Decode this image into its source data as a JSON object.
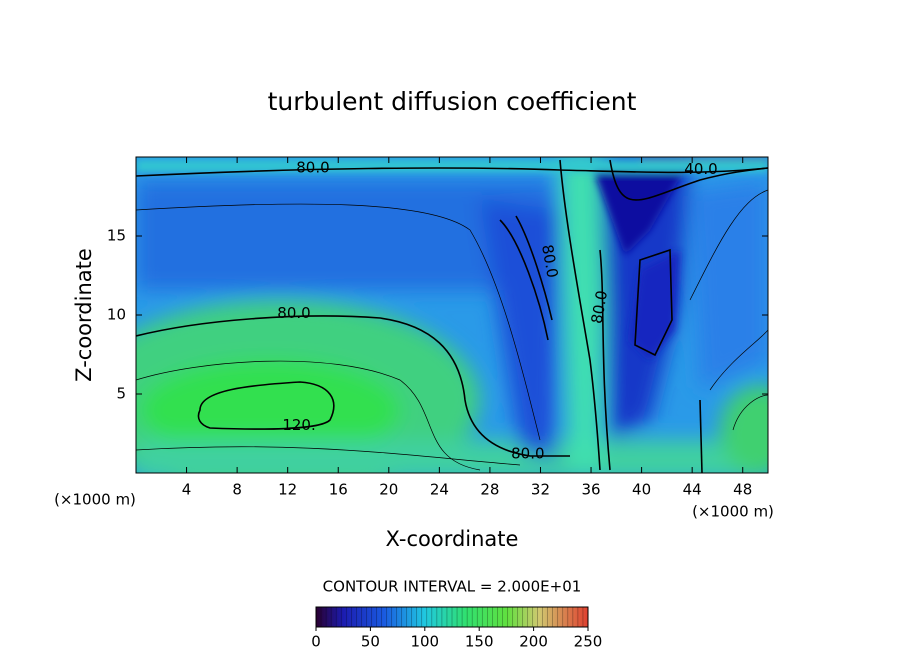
{
  "chart_data": {
    "type": "contour",
    "title": "turbulent diffusion coefficient",
    "xlabel": "X-coordinate",
    "ylabel": "Z-coordinate",
    "x_unit_label": "(×1000 m)",
    "y_unit_label": "(×1000 m)",
    "xlim": [
      0,
      50
    ],
    "xticks": [
      4,
      8,
      12,
      16,
      20,
      24,
      28,
      32,
      36,
      40,
      44,
      48
    ],
    "ylim": [
      0,
      20
    ],
    "yticks": [
      5,
      10,
      15
    ],
    "contour_labels": [
      {
        "value": 80,
        "label": "80.0",
        "x": 14.0,
        "z": 19.3
      },
      {
        "value": 80,
        "label": "80.0",
        "x": 12.5,
        "z": 10.1
      },
      {
        "value": 120,
        "label": "120.",
        "x": 12.9,
        "z": 3.0
      },
      {
        "value": 80,
        "label": "80.0",
        "x": 31.0,
        "z": 1.2
      },
      {
        "value": 80,
        "label": "80.0",
        "x": 32.7,
        "z": 13.4
      },
      {
        "value": 80,
        "label": "80.0",
        "x": 36.7,
        "z": 10.5
      },
      {
        "value": 40,
        "label": "40.0",
        "x": 44.7,
        "z": 19.2
      }
    ],
    "contour_interval_label": "CONTOUR INTERVAL = 2.000E+01",
    "colorbar": {
      "lim": [
        0,
        250
      ],
      "ticks": [
        0,
        50,
        100,
        150,
        200,
        250
      ]
    }
  }
}
